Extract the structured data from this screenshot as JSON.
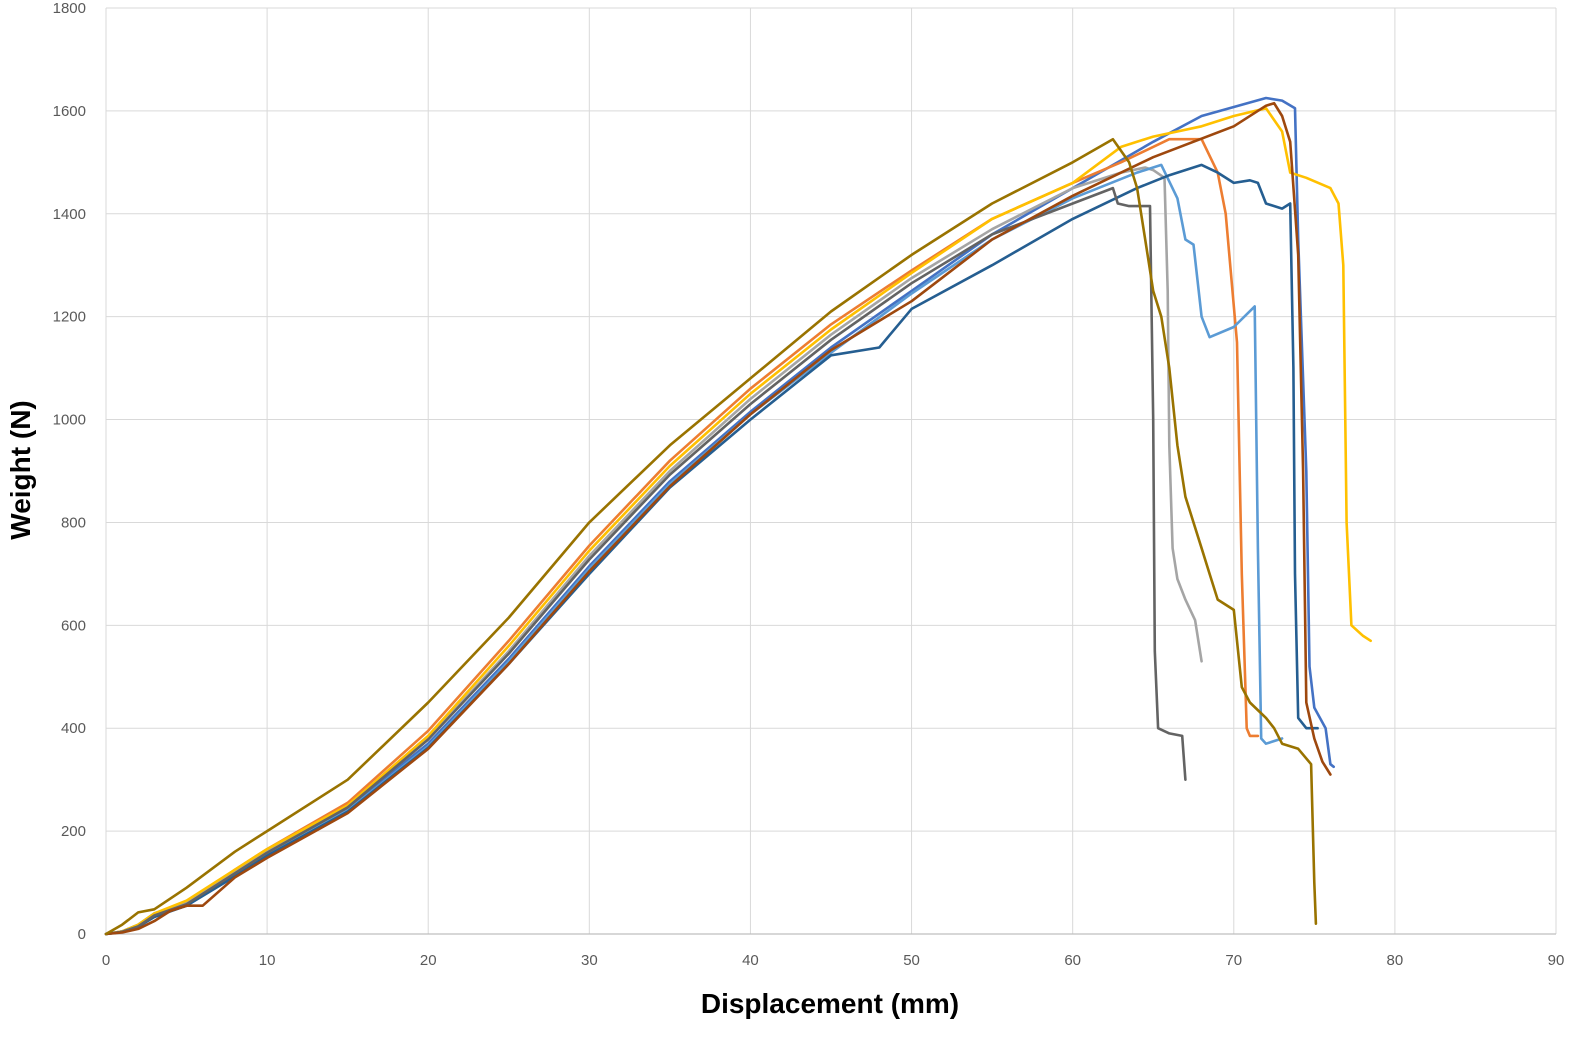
{
  "chart_data": {
    "type": "line",
    "title": "",
    "xlabel": "Displacement  (mm)",
    "ylabel": "Weight (N)",
    "xlim": [
      0,
      90
    ],
    "ylim": [
      0,
      1800
    ],
    "x_ticks": [
      0,
      10,
      20,
      30,
      40,
      50,
      60,
      70,
      80,
      90
    ],
    "y_ticks": [
      0,
      200,
      400,
      600,
      800,
      1000,
      1200,
      1400,
      1600,
      1800
    ],
    "grid": true,
    "legend": "none",
    "series": [
      {
        "color": "#4472c4",
        "points": [
          [
            0,
            0
          ],
          [
            1,
            5
          ],
          [
            2,
            18
          ],
          [
            3,
            40
          ],
          [
            5,
            60
          ],
          [
            8,
            120
          ],
          [
            10,
            160
          ],
          [
            15,
            245
          ],
          [
            20,
            370
          ],
          [
            25,
            535
          ],
          [
            30,
            715
          ],
          [
            35,
            880
          ],
          [
            40,
            1015
          ],
          [
            45,
            1140
          ],
          [
            50,
            1250
          ],
          [
            55,
            1360
          ],
          [
            60,
            1450
          ],
          [
            65,
            1540
          ],
          [
            68,
            1590
          ],
          [
            72,
            1625
          ],
          [
            73,
            1620
          ],
          [
            73.8,
            1605
          ],
          [
            74,
            1350
          ],
          [
            74.5,
            900
          ],
          [
            74.7,
            520
          ],
          [
            75,
            440
          ],
          [
            75.7,
            400
          ],
          [
            76,
            330
          ],
          [
            76.2,
            325
          ]
        ]
      },
      {
        "color": "#ed7d31",
        "points": [
          [
            0,
            0
          ],
          [
            1,
            5
          ],
          [
            2,
            15
          ],
          [
            3,
            35
          ],
          [
            5,
            58
          ],
          [
            8,
            125
          ],
          [
            10,
            165
          ],
          [
            15,
            255
          ],
          [
            20,
            395
          ],
          [
            25,
            570
          ],
          [
            30,
            755
          ],
          [
            35,
            920
          ],
          [
            40,
            1060
          ],
          [
            45,
            1185
          ],
          [
            50,
            1290
          ],
          [
            55,
            1390
          ],
          [
            60,
            1460
          ],
          [
            63,
            1500
          ],
          [
            66,
            1545
          ],
          [
            68,
            1545
          ],
          [
            69,
            1480
          ],
          [
            69.5,
            1400
          ],
          [
            70.2,
            1150
          ],
          [
            70.5,
            700
          ],
          [
            70.8,
            400
          ],
          [
            71,
            385
          ],
          [
            71.5,
            385
          ]
        ]
      },
      {
        "color": "#a5a5a5",
        "points": [
          [
            0,
            0
          ],
          [
            1,
            4
          ],
          [
            2,
            16
          ],
          [
            3,
            38
          ],
          [
            5,
            60
          ],
          [
            8,
            120
          ],
          [
            10,
            160
          ],
          [
            15,
            248
          ],
          [
            20,
            380
          ],
          [
            25,
            550
          ],
          [
            30,
            735
          ],
          [
            35,
            900
          ],
          [
            40,
            1040
          ],
          [
            45,
            1165
          ],
          [
            50,
            1275
          ],
          [
            55,
            1370
          ],
          [
            60,
            1450
          ],
          [
            63,
            1480
          ],
          [
            64.5,
            1490
          ],
          [
            65,
            1485
          ],
          [
            65.7,
            1470
          ],
          [
            65.9,
            1250
          ],
          [
            66,
            950
          ],
          [
            66.2,
            750
          ],
          [
            66.5,
            690
          ],
          [
            67,
            650
          ],
          [
            67.6,
            610
          ],
          [
            68,
            530
          ]
        ]
      },
      {
        "color": "#ffc000",
        "points": [
          [
            0,
            0
          ],
          [
            1,
            5
          ],
          [
            2,
            18
          ],
          [
            3,
            40
          ],
          [
            5,
            65
          ],
          [
            8,
            125
          ],
          [
            10,
            165
          ],
          [
            15,
            250
          ],
          [
            20,
            385
          ],
          [
            25,
            560
          ],
          [
            30,
            745
          ],
          [
            35,
            910
          ],
          [
            40,
            1050
          ],
          [
            45,
            1175
          ],
          [
            50,
            1285
          ],
          [
            55,
            1390
          ],
          [
            60,
            1460
          ],
          [
            63,
            1530
          ],
          [
            65,
            1550
          ],
          [
            68,
            1570
          ],
          [
            70,
            1590
          ],
          [
            72,
            1605
          ],
          [
            73,
            1560
          ],
          [
            73.5,
            1480
          ],
          [
            74.5,
            1470
          ],
          [
            76,
            1450
          ],
          [
            76.5,
            1420
          ],
          [
            76.8,
            1300
          ],
          [
            77,
            800
          ],
          [
            77.3,
            600
          ],
          [
            78,
            580
          ],
          [
            78.5,
            570
          ]
        ]
      },
      {
        "color": "#5b9bd5",
        "points": [
          [
            0,
            0
          ],
          [
            1,
            4
          ],
          [
            2,
            14
          ],
          [
            3,
            35
          ],
          [
            5,
            55
          ],
          [
            8,
            115
          ],
          [
            10,
            155
          ],
          [
            15,
            240
          ],
          [
            20,
            365
          ],
          [
            25,
            530
          ],
          [
            30,
            710
          ],
          [
            35,
            875
          ],
          [
            40,
            1010
          ],
          [
            45,
            1130
          ],
          [
            50,
            1245
          ],
          [
            55,
            1350
          ],
          [
            60,
            1430
          ],
          [
            64,
            1480
          ],
          [
            65.5,
            1495
          ],
          [
            66.5,
            1430
          ],
          [
            67,
            1350
          ],
          [
            67.5,
            1340
          ],
          [
            68,
            1200
          ],
          [
            68.5,
            1160
          ],
          [
            70,
            1180
          ],
          [
            71.3,
            1220
          ],
          [
            71.5,
            750
          ],
          [
            71.7,
            380
          ],
          [
            72,
            370
          ],
          [
            73,
            380
          ]
        ]
      },
      {
        "color": "#255e91",
        "points": [
          [
            0,
            0
          ],
          [
            1,
            4
          ],
          [
            2,
            14
          ],
          [
            3,
            33
          ],
          [
            5,
            55
          ],
          [
            8,
            112
          ],
          [
            10,
            152
          ],
          [
            15,
            238
          ],
          [
            20,
            362
          ],
          [
            25,
            525
          ],
          [
            30,
            700
          ],
          [
            35,
            868
          ],
          [
            40,
            1000
          ],
          [
            45,
            1125
          ],
          [
            48,
            1140
          ],
          [
            50,
            1215
          ],
          [
            55,
            1300
          ],
          [
            60,
            1390
          ],
          [
            64,
            1450
          ],
          [
            66,
            1475
          ],
          [
            68,
            1495
          ],
          [
            69,
            1480
          ],
          [
            70,
            1460
          ],
          [
            71,
            1465
          ],
          [
            71.5,
            1460
          ],
          [
            72,
            1420
          ],
          [
            73,
            1410
          ],
          [
            73.5,
            1420
          ],
          [
            73.7,
            1100
          ],
          [
            73.8,
            700
          ],
          [
            74,
            420
          ],
          [
            74.5,
            400
          ],
          [
            75.2,
            400
          ]
        ]
      },
      {
        "color": "#636363",
        "points": [
          [
            0,
            0
          ],
          [
            1,
            4
          ],
          [
            2,
            15
          ],
          [
            3,
            36
          ],
          [
            5,
            58
          ],
          [
            8,
            118
          ],
          [
            10,
            158
          ],
          [
            15,
            246
          ],
          [
            20,
            378
          ],
          [
            25,
            545
          ],
          [
            30,
            728
          ],
          [
            35,
            893
          ],
          [
            40,
            1030
          ],
          [
            45,
            1155
          ],
          [
            50,
            1265
          ],
          [
            55,
            1360
          ],
          [
            60,
            1420
          ],
          [
            62.5,
            1450
          ],
          [
            62.8,
            1420
          ],
          [
            63.5,
            1415
          ],
          [
            64.8,
            1415
          ],
          [
            65,
            1000
          ],
          [
            65.1,
            550
          ],
          [
            65.3,
            400
          ],
          [
            66,
            390
          ],
          [
            66.8,
            385
          ],
          [
            67,
            300
          ]
        ]
      },
      {
        "color": "#9e480e",
        "points": [
          [
            0,
            0
          ],
          [
            1,
            3
          ],
          [
            2,
            10
          ],
          [
            3,
            25
          ],
          [
            4,
            45
          ],
          [
            5,
            55
          ],
          [
            6,
            55
          ],
          [
            8,
            110
          ],
          [
            10,
            148
          ],
          [
            15,
            235
          ],
          [
            20,
            360
          ],
          [
            25,
            525
          ],
          [
            30,
            705
          ],
          [
            35,
            870
          ],
          [
            40,
            1010
          ],
          [
            45,
            1135
          ],
          [
            50,
            1230
          ],
          [
            55,
            1350
          ],
          [
            60,
            1435
          ],
          [
            65,
            1510
          ],
          [
            70,
            1570
          ],
          [
            72,
            1610
          ],
          [
            72.5,
            1615
          ],
          [
            73,
            1590
          ],
          [
            73.5,
            1540
          ],
          [
            74,
            1320
          ],
          [
            74.3,
            900
          ],
          [
            74.5,
            450
          ],
          [
            75,
            380
          ],
          [
            75.5,
            335
          ],
          [
            76,
            310
          ]
        ]
      },
      {
        "color": "#997300",
        "points": [
          [
            0,
            0
          ],
          [
            1,
            18
          ],
          [
            2,
            42
          ],
          [
            3,
            48
          ],
          [
            5,
            90
          ],
          [
            8,
            160
          ],
          [
            10,
            200
          ],
          [
            15,
            300
          ],
          [
            20,
            450
          ],
          [
            25,
            615
          ],
          [
            30,
            800
          ],
          [
            35,
            950
          ],
          [
            40,
            1080
          ],
          [
            45,
            1210
          ],
          [
            50,
            1320
          ],
          [
            55,
            1420
          ],
          [
            60,
            1500
          ],
          [
            62.5,
            1545
          ],
          [
            63.5,
            1500
          ],
          [
            64,
            1450
          ],
          [
            64.5,
            1350
          ],
          [
            65,
            1250
          ],
          [
            65.5,
            1200
          ],
          [
            66,
            1100
          ],
          [
            66.5,
            950
          ],
          [
            67,
            850
          ],
          [
            68,
            750
          ],
          [
            68.5,
            700
          ],
          [
            69,
            650
          ],
          [
            70,
            630
          ],
          [
            70.5,
            480
          ],
          [
            71,
            450
          ],
          [
            72,
            420
          ],
          [
            72.5,
            400
          ],
          [
            73,
            370
          ],
          [
            74,
            360
          ],
          [
            74.8,
            330
          ],
          [
            75,
            100
          ],
          [
            75.1,
            20
          ]
        ]
      }
    ]
  }
}
